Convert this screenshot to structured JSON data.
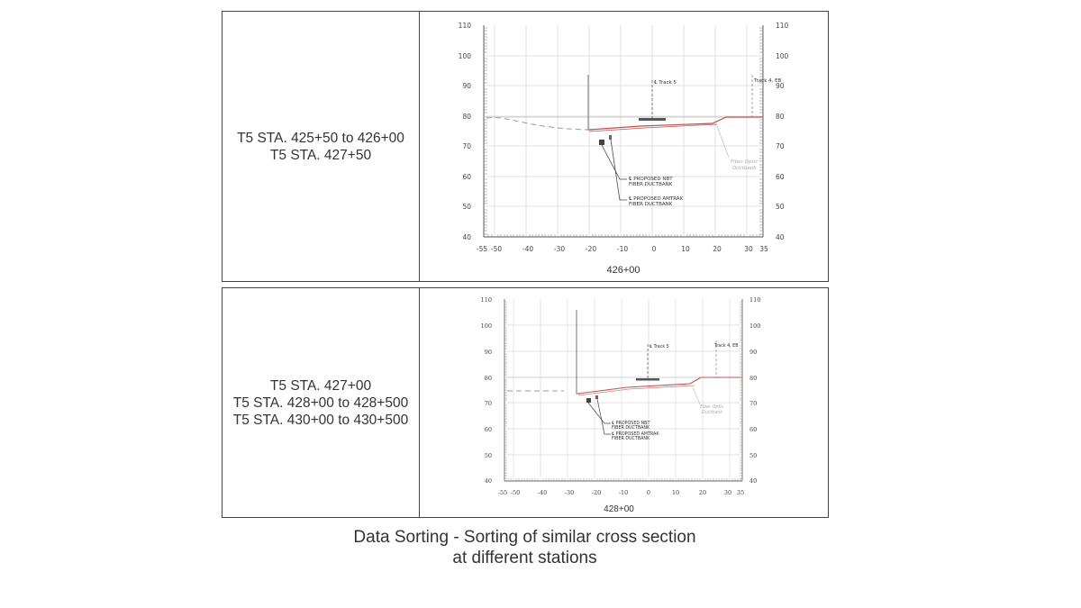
{
  "panels": [
    {
      "labels": [
        "T5 STA. 425+50 to 426+00",
        "T5 STA. 427+50"
      ],
      "drawing": {
        "station": "426+00",
        "y_ticks": [
          "40",
          "50",
          "60",
          "70",
          "80",
          "90",
          "100",
          "110"
        ],
        "x_ticks": [
          "-55",
          "-50",
          "-40",
          "-30",
          "-20",
          "-10",
          "0",
          "10",
          "20",
          "30",
          "35"
        ],
        "notes": [
          "℄ PROPOSED NBT",
          "FIBER DUCTBANK",
          "℄ PROPOSED AMTRAK",
          "FIBER DUCTBANK",
          "Fiber Optic",
          "Ductbank",
          "℄ Track 5",
          "Track 4, EB"
        ]
      }
    },
    {
      "labels": [
        "T5 STA. 427+00",
        "T5 STA. 428+00 to 428+500",
        "T5 STA. 430+00 to 430+500"
      ],
      "drawing": {
        "station": "428+00",
        "y_ticks": [
          "40",
          "50",
          "60",
          "70",
          "80",
          "90",
          "100",
          "110"
        ],
        "x_ticks": [
          "-55",
          "-50",
          "-40",
          "-30",
          "-20",
          "-10",
          "0",
          "10",
          "20",
          "30",
          "35"
        ],
        "notes": [
          "℄ PROPOSED NBT",
          "FIBER DUCTBANK",
          "℄ PROPOSED AMTRAK",
          "FIBER DUCTBANK",
          "Fiber Optic",
          "Ductbank",
          "℄ Track 5",
          "Track 4, EB"
        ]
      }
    }
  ],
  "caption": {
    "line1": "Data Sorting - Sorting of similar cross section",
    "line2": "at different stations"
  },
  "colors": {
    "ground": "#c0504d",
    "grid": "#d9d9d9",
    "frame": "#444444"
  }
}
